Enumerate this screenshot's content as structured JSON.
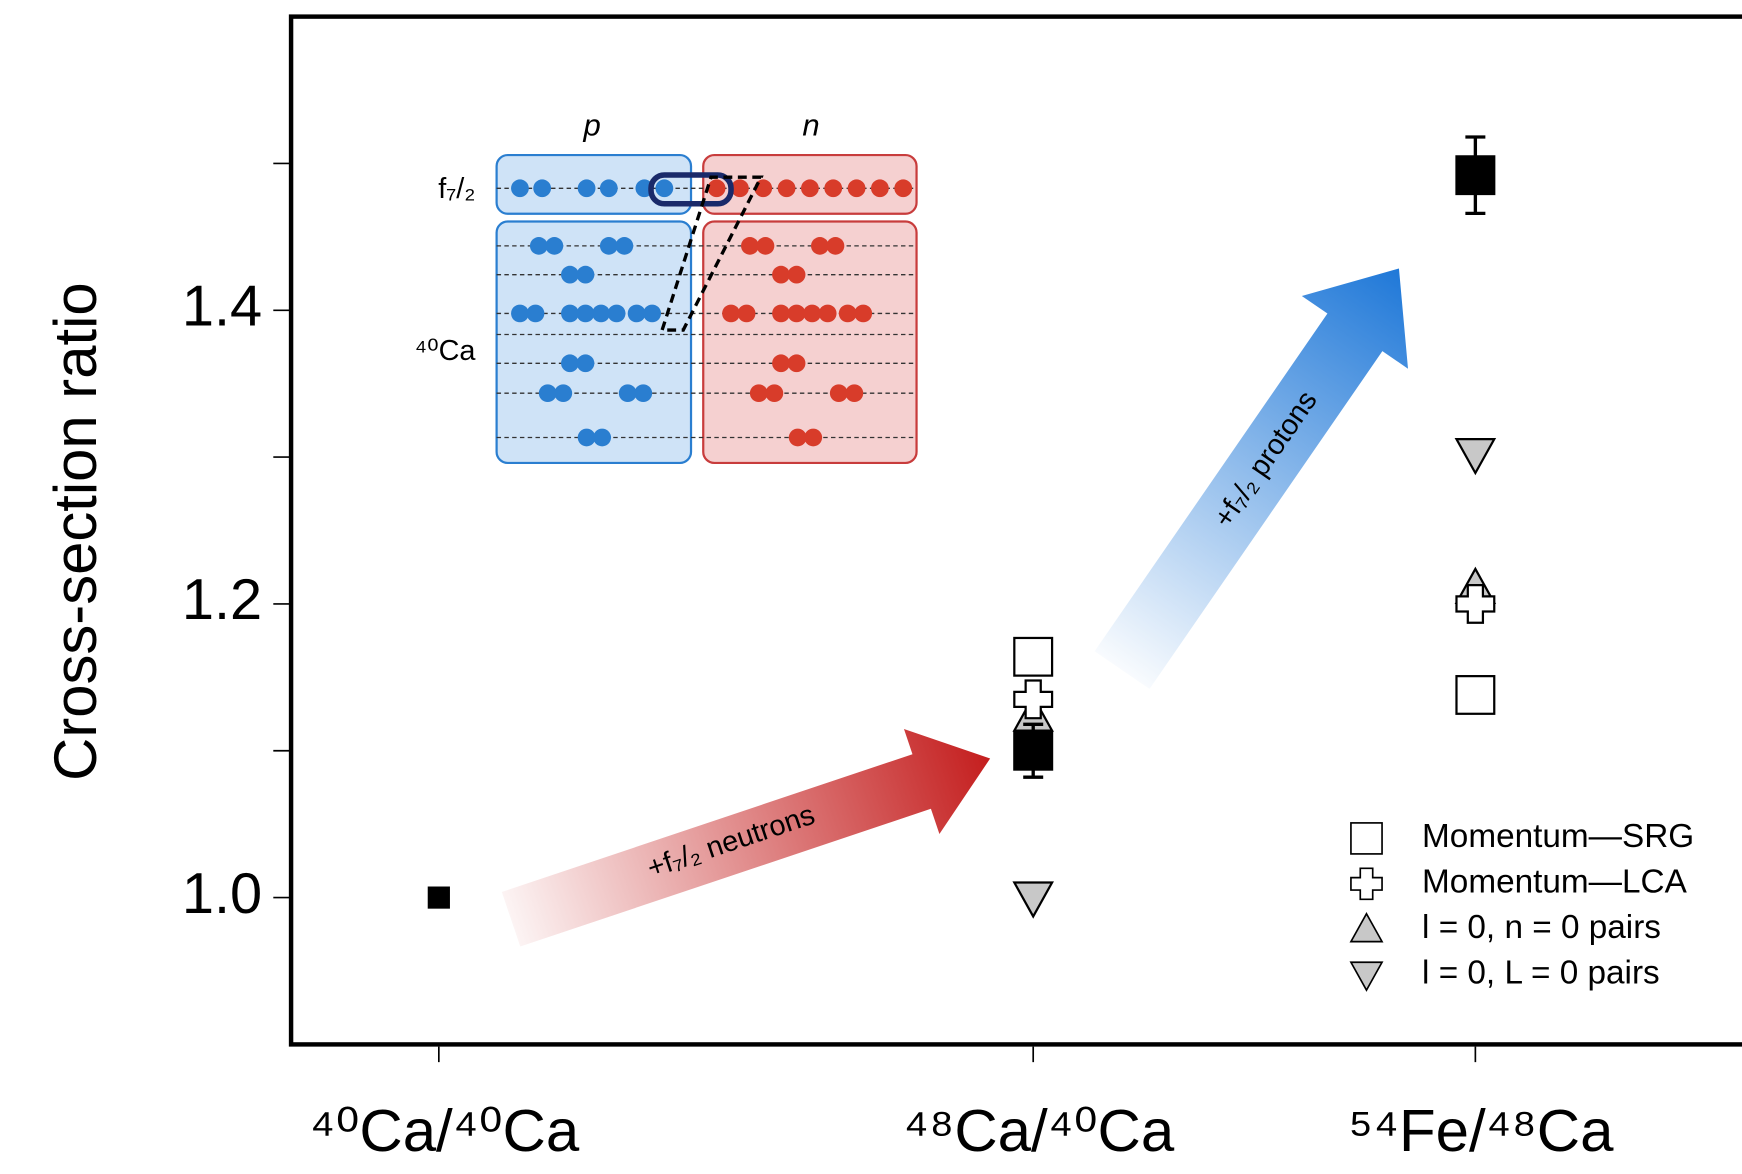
{
  "chart_data": {
    "type": "scatter",
    "y_label": "Cross-section ratio",
    "categories": [
      "⁴⁰Ca/⁴⁰Ca",
      "⁴⁸Ca/⁴⁰Ca",
      "⁵⁴Fe/⁴⁸Ca"
    ],
    "ylim": [
      0.9,
      1.6
    ],
    "yticks": [
      {
        "value": 1,
        "label": "1.0"
      },
      {
        "value": 1.2,
        "label": "1.2"
      },
      {
        "value": 1.4,
        "label": "1.4"
      }
    ],
    "yminor_ticks": [
      1.1,
      1.3,
      1.5
    ],
    "series": [
      {
        "marker": "filled-square",
        "color": "#000000",
        "values": [
          1.0,
          1.1,
          1.492
        ],
        "errors": [
          null,
          0.018,
          0.026
        ]
      },
      {
        "name": "Momentum—SRG",
        "marker": "square",
        "color": "#ffffff",
        "values": [
          null,
          1.164,
          1.138
        ]
      },
      {
        "name": "Momentum—LCA",
        "marker": "cross",
        "color": "#ffffff",
        "values": [
          null,
          1.135,
          1.2
        ]
      },
      {
        "name": "l = 0, n = 0 pairs",
        "marker": "triangle-up",
        "color": "#c8c8c8",
        "values": [
          null,
          1.124,
          1.211
        ]
      },
      {
        "name": "l = 0, L = 0 pairs",
        "marker": "triangle-down",
        "color": "#c8c8c8",
        "values": [
          null,
          1.0,
          1.302
        ]
      }
    ],
    "annotations": {
      "neutrons_arrow": "+f₇/₂ neutrons",
      "protons_arrow": "+f₇/₂ protons"
    },
    "inset": {
      "proton_label": "p",
      "neutron_label": "n",
      "shell_label": "f₇/₂",
      "nucleus_label": "⁴⁰Ca"
    }
  }
}
